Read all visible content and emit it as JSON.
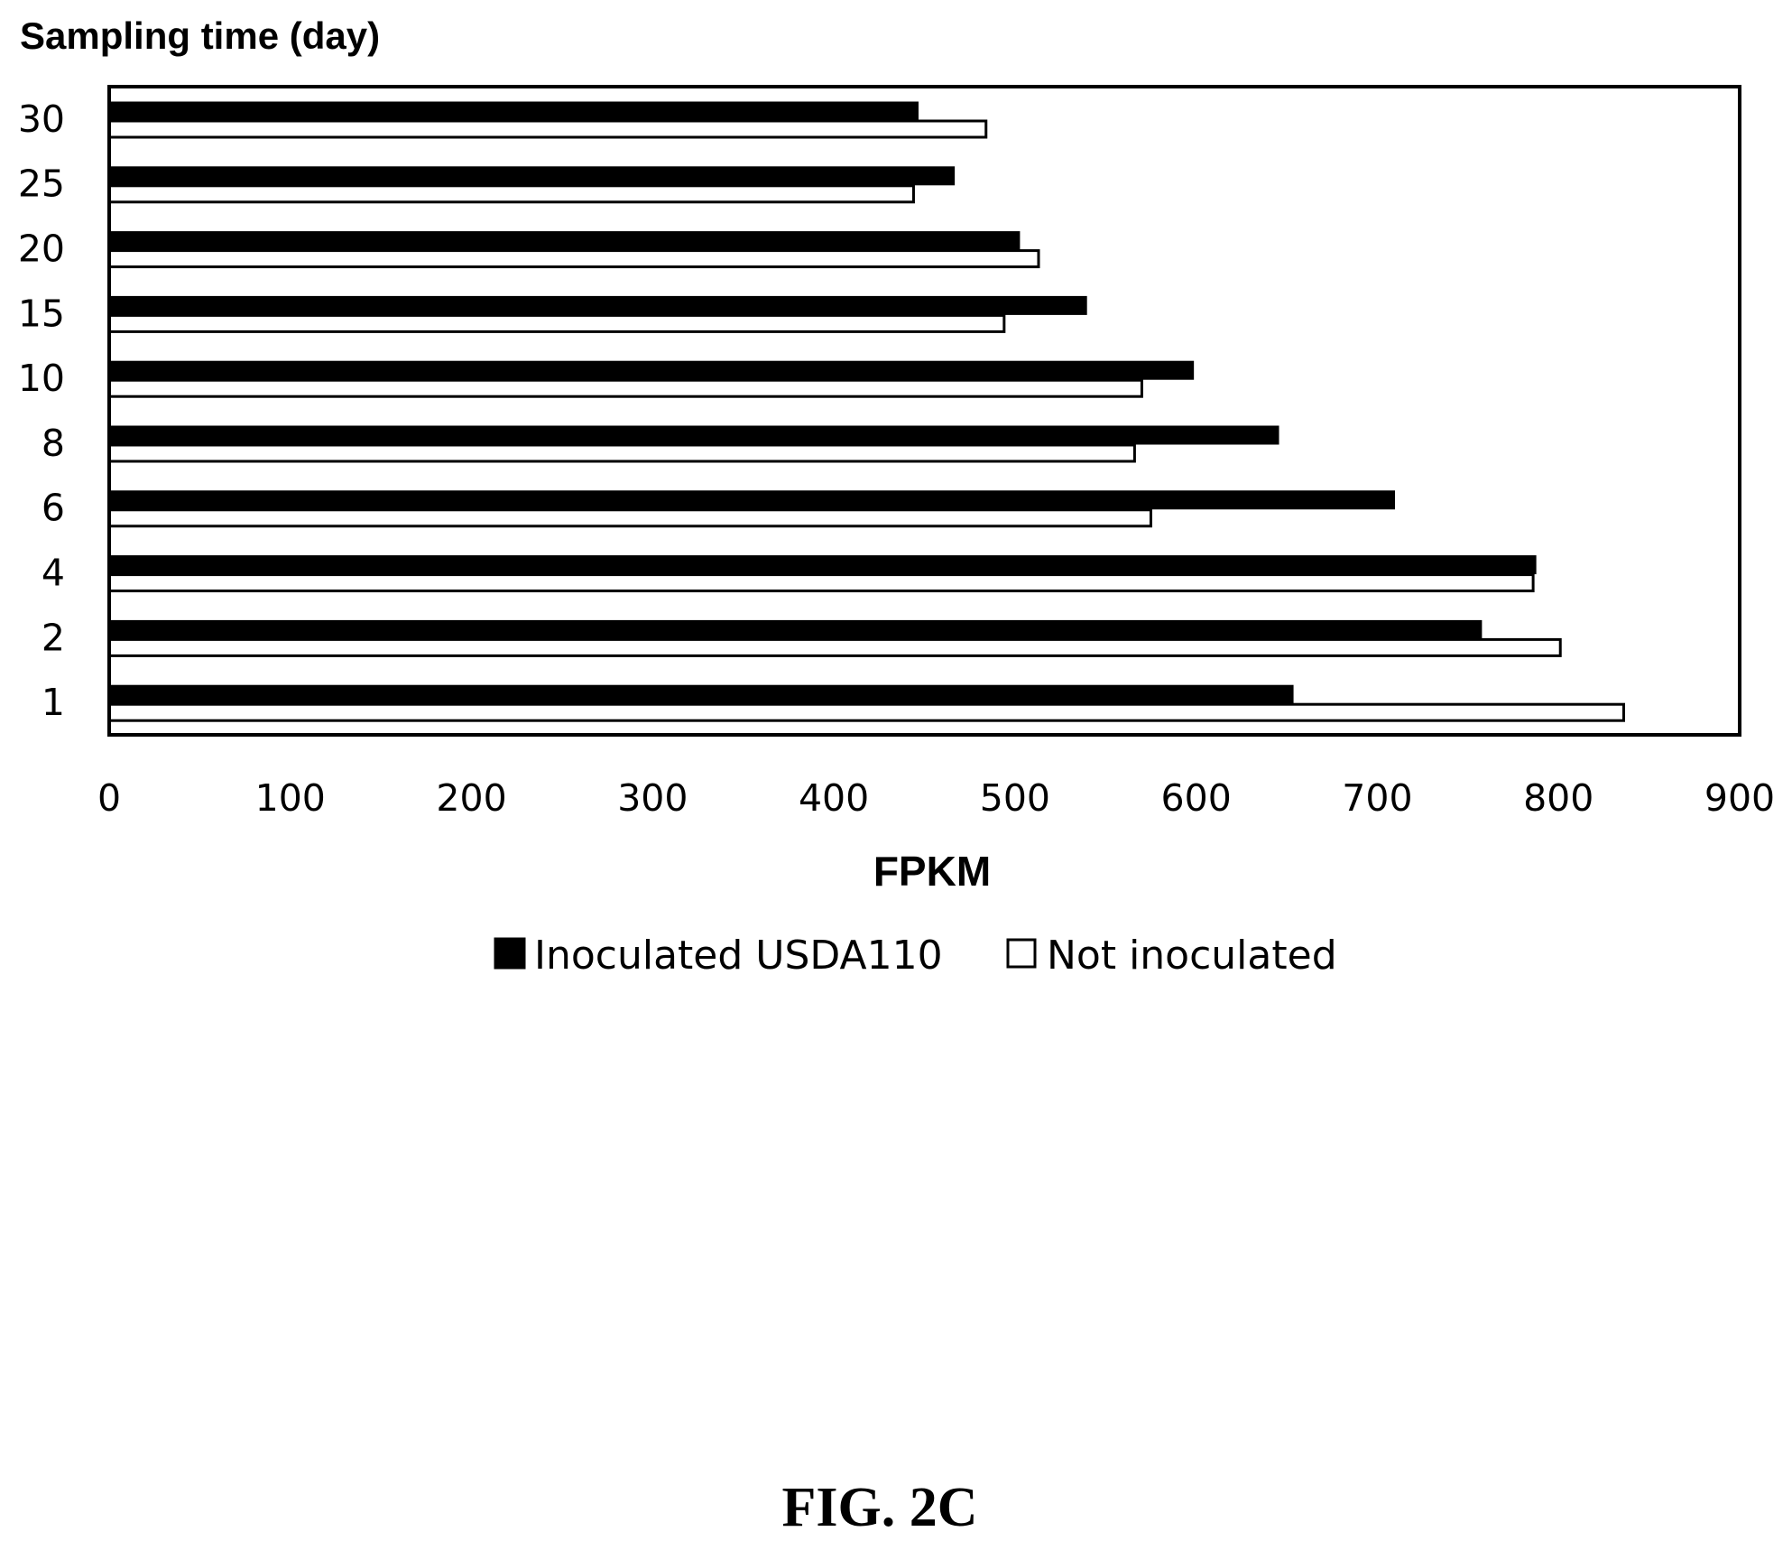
{
  "chart_data": {
    "type": "bar",
    "orientation": "horizontal",
    "ylabel": "Sampling time (day)",
    "xlabel": "FPKM",
    "xlim": [
      0,
      900
    ],
    "xticks": [
      "0",
      "100",
      "200",
      "300",
      "400",
      "500",
      "600",
      "700",
      "800",
      "900"
    ],
    "xtick_values": [
      0,
      100,
      200,
      300,
      400,
      500,
      600,
      700,
      800,
      900
    ],
    "categories": [
      "30",
      "25",
      "20",
      "15",
      "10",
      "8",
      "6",
      "4",
      "2",
      "1"
    ],
    "series": [
      {
        "name": "Inoculated USDA110",
        "color": "#000000",
        "values": [
          446,
          466,
          502,
          539,
          598,
          645,
          709,
          787,
          757,
          653
        ]
      },
      {
        "name": "Not inoculated",
        "color": "#ffffff",
        "values": [
          484,
          444,
          513,
          494,
          570,
          566,
          575,
          786,
          801,
          836
        ]
      }
    ],
    "legend_position": "bottom-center",
    "grid": false
  },
  "figure": {
    "caption": "FIG. 2C"
  }
}
